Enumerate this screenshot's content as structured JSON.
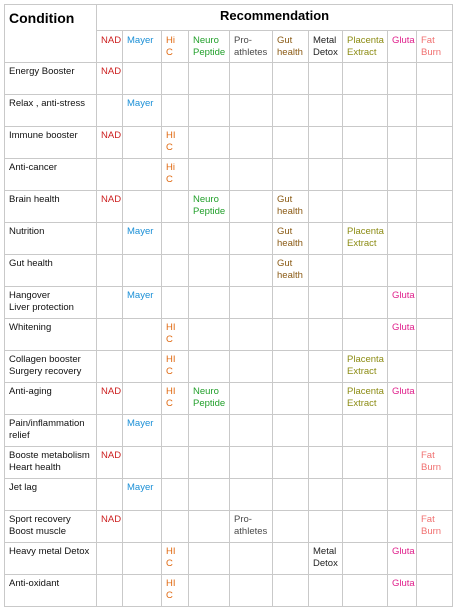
{
  "header": {
    "condition": "Condition",
    "recommendation": "Recommendation",
    "columns": [
      {
        "key": "nad",
        "label": "NAD",
        "color": "#cc1f1f"
      },
      {
        "key": "mayer",
        "label": "Mayer",
        "color": "#1a8fd6"
      },
      {
        "key": "hic",
        "label": "Hi C",
        "color": "#e06a12"
      },
      {
        "key": "neuro",
        "label": "Neuro\nPeptide",
        "color": "#22a02b"
      },
      {
        "key": "pro",
        "label": "Pro-\nathletes",
        "color": "#4a4a4a"
      },
      {
        "key": "gut",
        "label": "Gut\nhealth",
        "color": "#8a5a14"
      },
      {
        "key": "metal",
        "label": "Metal\nDetox",
        "color": "#222222"
      },
      {
        "key": "placenta",
        "label": "Placenta\nExtract",
        "color": "#8c8c14"
      },
      {
        "key": "gluta",
        "label": "Gluta",
        "color": "#e0208c"
      },
      {
        "key": "fat",
        "label": "Fat\nBurn",
        "color": "#f07070"
      }
    ]
  },
  "rows": [
    {
      "condition": "Energy Booster",
      "cells": [
        "NAD",
        "",
        "",
        "",
        "",
        "",
        "",
        "",
        "",
        ""
      ]
    },
    {
      "condition": "Relax , anti-stress",
      "cells": [
        "",
        "Mayer",
        "",
        "",
        "",
        "",
        "",
        "",
        "",
        ""
      ]
    },
    {
      "condition": "Immune booster",
      "cells": [
        "NAD",
        "",
        "HI C",
        "",
        "",
        "",
        "",
        "",
        "",
        ""
      ]
    },
    {
      "condition": "Anti-cancer",
      "cells": [
        "",
        "",
        "Hi C",
        "",
        "",
        "",
        "",
        "",
        "",
        ""
      ]
    },
    {
      "condition": "Brain health",
      "cells": [
        "NAD",
        "",
        "",
        "Neuro\nPeptide",
        "",
        "Gut\nhealth",
        "",
        "",
        "",
        ""
      ]
    },
    {
      "condition": "Nutrition",
      "cells": [
        "",
        "Mayer",
        "",
        "",
        "",
        "Gut\nhealth",
        "",
        "Placenta\nExtract",
        "",
        ""
      ]
    },
    {
      "condition": "Gut health",
      "cells": [
        "",
        "",
        "",
        "",
        "",
        "Gut\nhealth",
        "",
        "",
        "",
        ""
      ]
    },
    {
      "condition": "Hangover\nLiver protection",
      "cells": [
        "",
        "Mayer",
        "",
        "",
        "",
        "",
        "",
        "",
        "Gluta",
        ""
      ]
    },
    {
      "condition": "Whitening",
      "cells": [
        "",
        "",
        "HI C",
        "",
        "",
        "",
        "",
        "",
        "Gluta",
        ""
      ]
    },
    {
      "condition": "Collagen booster\nSurgery recovery",
      "cells": [
        "",
        "",
        "HI C",
        "",
        "",
        "",
        "",
        "Placenta\nExtract",
        "",
        ""
      ]
    },
    {
      "condition": "Anti-aging",
      "cells": [
        "NAD",
        "",
        "HI C",
        "Neuro\nPeptide",
        "",
        "",
        "",
        "Placenta\nExtract",
        "Gluta",
        ""
      ]
    },
    {
      "condition": "Pain/inflammation\nrelief",
      "cells": [
        "",
        "Mayer",
        "",
        "",
        "",
        "",
        "",
        "",
        "",
        ""
      ]
    },
    {
      "condition": "Booste metabolism\nHeart health",
      "cells": [
        "NAD",
        "",
        "",
        "",
        "",
        "",
        "",
        "",
        "",
        "Fat\nBurn"
      ]
    },
    {
      "condition": "Jet lag",
      "cells": [
        "",
        "Mayer",
        "",
        "",
        "",
        "",
        "",
        "",
        "",
        ""
      ]
    },
    {
      "condition": "Sport recovery\nBoost muscle",
      "cells": [
        "NAD",
        "",
        "",
        "",
        "Pro-\nathletes",
        "",
        "",
        "",
        "",
        "Fat\nBurn"
      ]
    },
    {
      "condition": "Heavy metal Detox",
      "cells": [
        "",
        "",
        "HI C",
        "",
        "",
        "",
        "Metal\nDetox",
        "",
        "Gluta",
        ""
      ]
    },
    {
      "condition": "Anti-oxidant",
      "cells": [
        "",
        "",
        "HI C",
        "",
        "",
        "",
        "",
        "",
        "Gluta",
        ""
      ]
    }
  ]
}
